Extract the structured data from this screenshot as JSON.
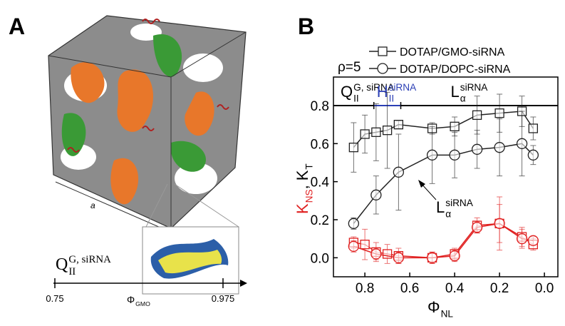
{
  "panel_a": {
    "label": "A",
    "lattice_label": "a",
    "phase_label": {
      "base": "Q",
      "sub": "II",
      "sup": "G, siRNA"
    },
    "axis": {
      "start_label": "0.75",
      "base": "Φ",
      "sub": "GMO",
      "end_label": "0.975"
    }
  },
  "chart_data": {
    "type": "line",
    "panel_label": "B",
    "annotation": "ρ=5",
    "xlabel": {
      "base": "Φ",
      "sub": "NL"
    },
    "ylabel": {
      "ns": {
        "base": "K",
        "sub": "NS",
        "color": "#e02020"
      },
      "separator": ",",
      "t": {
        "base": "K",
        "sub": "T",
        "color": "#000000"
      }
    },
    "xlim": [
      0.94,
      -0.06
    ],
    "xticks": [
      0.8,
      0.6,
      0.4,
      0.2,
      {
        "value": 0,
        "label": "0.0"
      }
    ],
    "ylim": [
      -0.1,
      0.95
    ],
    "yticks": [
      {
        "value": 0,
        "label": "0.0"
      },
      0.2,
      0.4,
      0.6,
      0.8
    ],
    "phases": [
      {
        "base": "Q",
        "sub": "II",
        "sup": "G, siRNA",
        "color": "#000000"
      },
      {
        "base": "H",
        "sub": "II",
        "sup": "siRNA",
        "color": "#2b3fb5"
      },
      {
        "base": "L",
        "sub": "α",
        "sup": "siRNA",
        "color": "#000000"
      }
    ],
    "phase_boundaries": [
      0.76,
      0.64
    ],
    "arrow_annotation": {
      "base": "L",
      "sub": "α",
      "sup": "siRNA"
    },
    "series": [
      {
        "name": "DOTAP/GMO-siRNA",
        "color": "#222222",
        "marker": "square",
        "x": [
          0.85,
          0.8,
          0.75,
          0.7,
          0.65,
          0.5,
          0.4,
          0.3,
          0.2,
          0.1,
          0.05
        ],
        "values": [
          0.58,
          0.65,
          0.66,
          0.67,
          0.7,
          0.68,
          0.69,
          0.75,
          0.76,
          0.77,
          0.68
        ],
        "errors": [
          0.13,
          0.1,
          0.15,
          0.2,
          0.02,
          0.03,
          0.05,
          0.1,
          0.1,
          0.08,
          0.06
        ]
      },
      {
        "name": "DOTAP/DOPC-siRNA",
        "color": "#222222",
        "marker": "circle",
        "x": [
          0.85,
          0.75,
          0.65,
          0.5,
          0.4,
          0.3,
          0.2,
          0.1,
          0.05
        ],
        "values": [
          0.18,
          0.33,
          0.45,
          0.54,
          0.54,
          0.57,
          0.58,
          0.6,
          0.54
        ],
        "errors": [
          0.03,
          0.1,
          0.2,
          0.15,
          0.12,
          0.1,
          0.15,
          0.17,
          0.05
        ]
      },
      {
        "color": "#e02020",
        "marker": "square",
        "x": [
          0.85,
          0.8,
          0.75,
          0.7,
          0.65,
          0.5,
          0.4,
          0.3,
          0.2,
          0.1,
          0.05
        ],
        "values": [
          0.08,
          0.07,
          0.03,
          0.02,
          0.01,
          0,
          0.02,
          0.17,
          0.18,
          0.11,
          0.07
        ],
        "errors": [
          0.03,
          0.08,
          0.05,
          0.05,
          0.04,
          0.03,
          0.03,
          0.04,
          0.1,
          0.05,
          0.03
        ]
      },
      {
        "color": "#e02020",
        "marker": "circle",
        "x": [
          0.85,
          0.75,
          0.65,
          0.5,
          0.4,
          0.3,
          0.2,
          0.1,
          0.05
        ],
        "values": [
          0.06,
          0.02,
          0,
          0,
          0.01,
          0.16,
          0.18,
          0.1,
          0.09
        ],
        "errors": [
          0.03,
          0.03,
          0.03,
          0.03,
          0.03,
          0.03,
          0.14,
          0.05,
          0.02
        ]
      }
    ]
  }
}
